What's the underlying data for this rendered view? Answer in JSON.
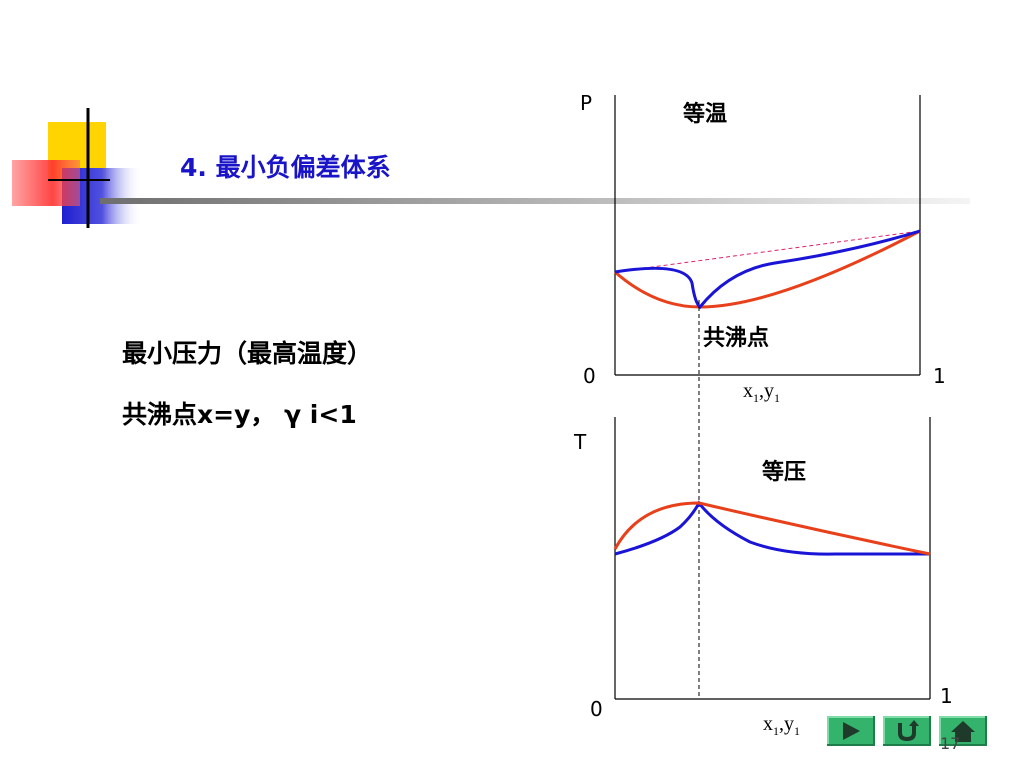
{
  "slide": {
    "title": "4. 最小负偏差体系",
    "line1": "最小压力（最高温度）",
    "line2": "共沸点x=y，  γ i<1",
    "page_number": "17"
  },
  "top_diagram": {
    "axis_y_label": "P",
    "heading": "等温",
    "azeotrope_label": "共沸点",
    "origin_label": "0",
    "end_label": "1",
    "x_axis_base": "x",
    "x_axis_sub1": "1",
    "x_axis_mid": ",y",
    "x_axis_sub2": "1"
  },
  "bottom_diagram": {
    "axis_y_label": "T",
    "heading": "等压",
    "origin_label": "0",
    "end_label": "1",
    "x_axis_base": "x",
    "x_axis_sub1": "1",
    "x_axis_mid": ",y",
    "x_axis_sub2": "1"
  },
  "colors": {
    "liquid_curve": "#e8401a",
    "vapor_curve": "#1a14d6",
    "ideal_line": "#e0206a",
    "nav_button": "#33b36b",
    "title_text": "#1a14c8"
  },
  "nav": {
    "buttons": [
      "play-icon",
      "return-icon",
      "home-icon"
    ]
  }
}
